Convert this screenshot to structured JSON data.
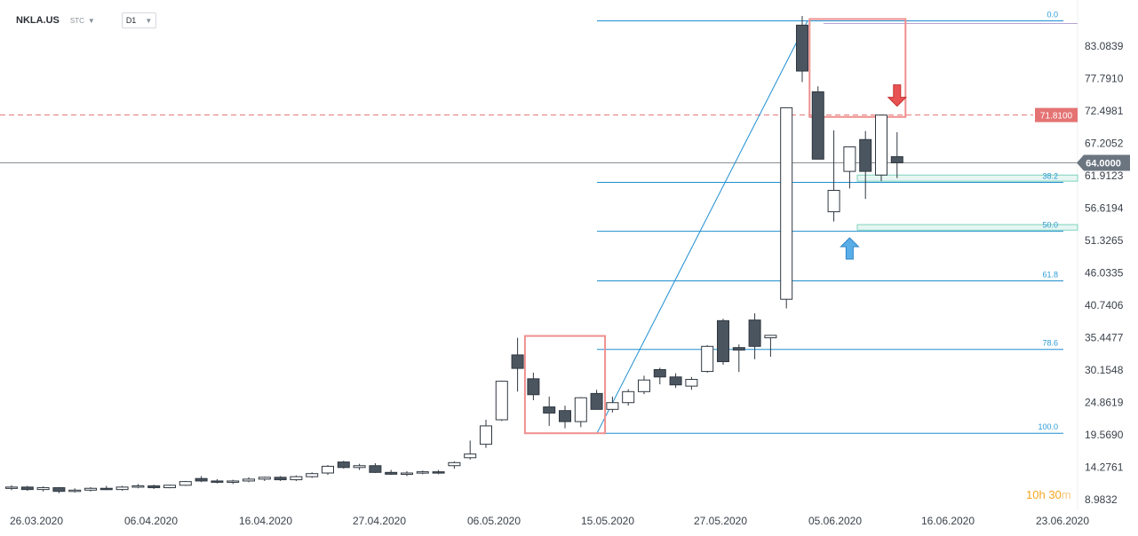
{
  "header": {
    "symbol": "NKLA.US",
    "source": "STC",
    "timeframe": "D1"
  },
  "countdown": {
    "hours": "10h",
    "minutes": "30",
    "unit": "m"
  },
  "colors": {
    "bull_fill": "#ffffff",
    "bear_fill": "#4a5560",
    "candle_outline": "#2f3740",
    "fib_line": "#1e8fd0",
    "fib_label": "#2b9bd6",
    "red_line": "#e57373",
    "current_price_line": "#8a8f96",
    "current_price_badge": "#6b7580",
    "highlight_box": "#ef8f8f",
    "up_arrow": "#5aaee8",
    "down_arrow": "#e85252",
    "timer": "#f5a623"
  },
  "chart_data": {
    "type": "candlestick",
    "symbol": "NKLA.US",
    "timeframe": "D1",
    "y_axis": {
      "ticks": [
        "83.0839",
        "77.7910",
        "72.4981",
        "67.2052",
        "61.9123",
        "56.6194",
        "51.3265",
        "46.0335",
        "40.7406",
        "35.4477",
        "30.1548",
        "24.8619",
        "19.5690",
        "14.2761",
        "8.9832"
      ],
      "range": [
        7.5,
        88.0
      ]
    },
    "x_axis": {
      "ticks": [
        "26.03.2020",
        "06.04.2020",
        "16.04.2020",
        "27.04.2020",
        "06.05.2020",
        "15.05.2020",
        "27.05.2020",
        "05.06.2020",
        "16.06.2020",
        "23.06.2020"
      ]
    },
    "candles": [
      {
        "o": 10.8,
        "h": 11.3,
        "l": 10.5,
        "c": 11.0
      },
      {
        "o": 11.0,
        "h": 11.2,
        "l": 10.4,
        "c": 10.6
      },
      {
        "o": 10.6,
        "h": 11.1,
        "l": 10.3,
        "c": 10.9
      },
      {
        "o": 10.9,
        "h": 11.0,
        "l": 10.0,
        "c": 10.3
      },
      {
        "o": 10.3,
        "h": 10.8,
        "l": 10.1,
        "c": 10.5
      },
      {
        "o": 10.5,
        "h": 11.0,
        "l": 10.3,
        "c": 10.8
      },
      {
        "o": 10.8,
        "h": 11.2,
        "l": 10.5,
        "c": 10.6
      },
      {
        "o": 10.6,
        "h": 11.2,
        "l": 10.4,
        "c": 11.0
      },
      {
        "o": 11.0,
        "h": 11.5,
        "l": 10.8,
        "c": 11.2
      },
      {
        "o": 11.2,
        "h": 11.4,
        "l": 10.7,
        "c": 10.9
      },
      {
        "o": 10.9,
        "h": 11.4,
        "l": 10.8,
        "c": 11.3
      },
      {
        "o": 11.3,
        "h": 12.0,
        "l": 11.2,
        "c": 11.9
      },
      {
        "o": 12.4,
        "h": 12.8,
        "l": 11.8,
        "c": 12.0
      },
      {
        "o": 12.0,
        "h": 12.3,
        "l": 11.6,
        "c": 11.8
      },
      {
        "o": 11.8,
        "h": 12.2,
        "l": 11.5,
        "c": 12.0
      },
      {
        "o": 12.0,
        "h": 12.6,
        "l": 11.8,
        "c": 12.3
      },
      {
        "o": 12.3,
        "h": 12.7,
        "l": 12.0,
        "c": 12.6
      },
      {
        "o": 12.6,
        "h": 12.8,
        "l": 12.0,
        "c": 12.2
      },
      {
        "o": 12.2,
        "h": 12.9,
        "l": 12.0,
        "c": 12.7
      },
      {
        "o": 12.7,
        "h": 13.4,
        "l": 12.5,
        "c": 13.2
      },
      {
        "o": 13.3,
        "h": 14.6,
        "l": 13.0,
        "c": 14.4
      },
      {
        "o": 15.1,
        "h": 15.3,
        "l": 14.0,
        "c": 14.2
      },
      {
        "o": 14.2,
        "h": 14.8,
        "l": 13.8,
        "c": 14.5
      },
      {
        "o": 14.5,
        "h": 14.9,
        "l": 13.3,
        "c": 13.4
      },
      {
        "o": 13.4,
        "h": 13.8,
        "l": 13.0,
        "c": 13.1
      },
      {
        "o": 13.1,
        "h": 13.6,
        "l": 12.8,
        "c": 13.3
      },
      {
        "o": 13.3,
        "h": 13.7,
        "l": 13.1,
        "c": 13.5
      },
      {
        "o": 13.5,
        "h": 13.8,
        "l": 13.1,
        "c": 13.3
      },
      {
        "o": 14.5,
        "h": 15.2,
        "l": 14.0,
        "c": 15.0
      },
      {
        "o": 15.8,
        "h": 18.6,
        "l": 15.5,
        "c": 16.4
      },
      {
        "o": 18.0,
        "h": 22.0,
        "l": 17.4,
        "c": 21.0
      },
      {
        "o": 22.0,
        "h": 28.4,
        "l": 21.8,
        "c": 28.3
      },
      {
        "o": 32.6,
        "h": 35.4,
        "l": 26.6,
        "c": 30.4
      },
      {
        "o": 28.7,
        "h": 29.7,
        "l": 25.2,
        "c": 26.1
      },
      {
        "o": 24.1,
        "h": 25.8,
        "l": 21.0,
        "c": 23.1
      },
      {
        "o": 23.5,
        "h": 24.3,
        "l": 20.6,
        "c": 21.7
      },
      {
        "o": 21.7,
        "h": 25.7,
        "l": 20.8,
        "c": 25.6
      },
      {
        "o": 26.3,
        "h": 26.9,
        "l": 23.8,
        "c": 23.7
      },
      {
        "o": 23.7,
        "h": 25.8,
        "l": 23.2,
        "c": 24.8
      },
      {
        "o": 24.8,
        "h": 27.0,
        "l": 24.3,
        "c": 26.6
      },
      {
        "o": 26.6,
        "h": 29.2,
        "l": 26.2,
        "c": 28.5
      },
      {
        "o": 30.2,
        "h": 30.5,
        "l": 27.8,
        "c": 29.0
      },
      {
        "o": 29.0,
        "h": 29.6,
        "l": 27.2,
        "c": 27.7
      },
      {
        "o": 27.5,
        "h": 29.0,
        "l": 26.9,
        "c": 28.6
      },
      {
        "o": 29.9,
        "h": 34.2,
        "l": 29.7,
        "c": 34.0
      },
      {
        "o": 38.2,
        "h": 38.5,
        "l": 31.0,
        "c": 31.5
      },
      {
        "o": 33.8,
        "h": 34.3,
        "l": 29.8,
        "c": 33.4
      },
      {
        "o": 38.3,
        "h": 39.4,
        "l": 31.9,
        "c": 34.0
      },
      {
        "o": 35.4,
        "h": 35.8,
        "l": 32.3,
        "c": 35.8
      },
      {
        "o": 41.7,
        "h": 73.0,
        "l": 40.2,
        "c": 73.0
      },
      {
        "o": 86.5,
        "h": 88.0,
        "l": 77.2,
        "c": 79.0
      },
      {
        "o": 75.6,
        "h": 76.5,
        "l": 64.6,
        "c": 64.6
      },
      {
        "o": 56.0,
        "h": 69.3,
        "l": 54.4,
        "c": 59.5
      },
      {
        "o": 62.6,
        "h": 66.6,
        "l": 59.8,
        "c": 66.6
      },
      {
        "o": 67.8,
        "h": 69.2,
        "l": 58.1,
        "c": 62.6
      },
      {
        "o": 62.0,
        "h": 71.8,
        "l": 61.0,
        "c": 71.8
      },
      {
        "o": 65.0,
        "h": 69.0,
        "l": 61.5,
        "c": 64.0
      }
    ],
    "fibonacci": {
      "levels": [
        {
          "label": "0.0",
          "value": 87.2
        },
        {
          "label": "38.2",
          "value": 60.8
        },
        {
          "label": "50.0",
          "value": 52.8
        },
        {
          "label": "61.8",
          "value": 44.7
        },
        {
          "label": "78.6",
          "value": 33.5
        },
        {
          "label": "100.0",
          "value": 19.8
        }
      ]
    },
    "resistance": {
      "label": "71.8100",
      "value": 71.81
    },
    "current_price": {
      "label": "64.0000",
      "value": 64.0
    },
    "zones": [
      {
        "low": 61.0,
        "high": 62.0
      },
      {
        "low": 53.0,
        "high": 53.9
      }
    ],
    "highlight_boxes": [
      {
        "x_from": 33,
        "x_to": 37,
        "low": 19.8,
        "high": 35.7
      },
      {
        "x_from": 51,
        "x_to": 56,
        "low": 71.5,
        "high": 87.5
      }
    ],
    "arrows": [
      {
        "direction": "up",
        "x": 53,
        "value": 50.0
      },
      {
        "direction": "down",
        "x": 56,
        "value": 75.0
      }
    ]
  }
}
